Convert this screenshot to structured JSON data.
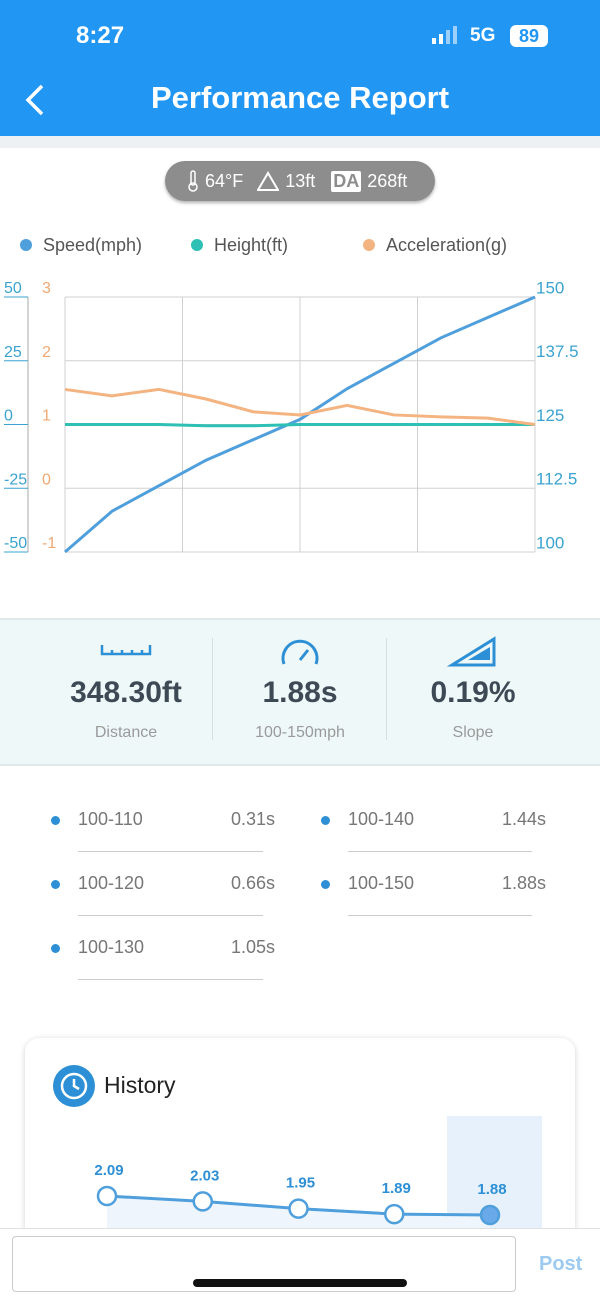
{
  "status_bar": {
    "time": "8:27",
    "network": "5G",
    "battery": "89"
  },
  "header": {
    "title": "Performance Report"
  },
  "conditions": {
    "temperature": "64°F",
    "elevation": "13ft",
    "da_badge": "DA",
    "density_altitude": "268ft"
  },
  "chart": {
    "type": "line",
    "series": [
      {
        "name": "Speed(mph)",
        "color": "#4f9fdc",
        "axis": "y2",
        "values": [
          100,
          108,
          113,
          118,
          122,
          126,
          132,
          137,
          142,
          146,
          150
        ]
      },
      {
        "name": "Height(ft)",
        "color": "#2ec0b4",
        "axis": "y",
        "values": [
          0,
          0,
          0,
          -0.5,
          -0.5,
          0,
          0,
          0,
          0,
          0,
          0
        ]
      },
      {
        "name": "Acceleration(g)",
        "color": "#f4b482",
        "axis": "y3",
        "values": [
          1.55,
          1.45,
          1.55,
          1.4,
          1.2,
          1.15,
          1.3,
          1.15,
          1.12,
          1.1,
          1.0
        ]
      }
    ],
    "ylim": [
      -50,
      50
    ],
    "yticks": [
      -50,
      -25,
      0,
      25,
      50
    ],
    "y3lim": [
      -1,
      3
    ],
    "y3ticks": [
      -1,
      0,
      1,
      2,
      3
    ],
    "y2lim": [
      100,
      150
    ],
    "y2ticks": [
      100,
      112.5,
      125,
      137.5,
      150
    ],
    "grid": true
  },
  "stats": [
    {
      "value": "348.30ft",
      "label": "Distance"
    },
    {
      "value": "1.88s",
      "label": "100-150mph"
    },
    {
      "value": "0.19%",
      "label": "Slope"
    }
  ],
  "splits": [
    {
      "range": "100-110",
      "time": "0.31s"
    },
    {
      "range": "100-120",
      "time": "0.66s"
    },
    {
      "range": "100-130",
      "time": "1.05s"
    },
    {
      "range": "100-140",
      "time": "1.44s"
    },
    {
      "range": "100-150",
      "time": "1.88s"
    }
  ],
  "history": {
    "title": "History",
    "values": [
      2.09,
      2.03,
      1.95,
      1.89,
      1.88
    ]
  },
  "composer": {
    "button": "Post"
  }
}
